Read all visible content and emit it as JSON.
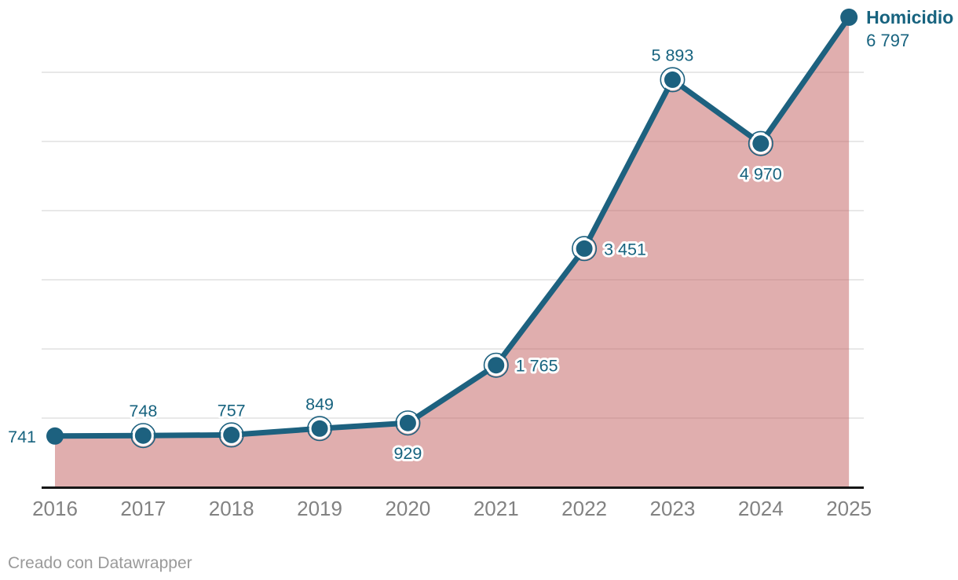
{
  "footer": {
    "credit": "Creado con Datawrapper"
  },
  "chart_data": {
    "type": "area",
    "title": "",
    "series_label": "Homicidio",
    "x": [
      2016,
      2017,
      2018,
      2019,
      2020,
      2021,
      2022,
      2023,
      2024,
      2025
    ],
    "x_tick_labels": [
      "2016",
      "2017",
      "2018",
      "2019",
      "2020",
      "2021",
      "2022",
      "2023",
      "2024",
      "2025"
    ],
    "series": [
      {
        "name": "Homicidio",
        "values": [
          741,
          748,
          757,
          849,
          929,
          1765,
          3451,
          5893,
          4970,
          6797
        ]
      }
    ],
    "value_labels": [
      "741",
      "748",
      "757",
      "849",
      "929",
      "1 765",
      "3 451",
      "5 893",
      "4 970",
      "6 797"
    ],
    "label_positions": [
      "left",
      "above",
      "above",
      "above",
      "below",
      "right",
      "right",
      "above",
      "below",
      "legend"
    ],
    "legend_value_label": "6 797",
    "ylim": [
      0,
      6900
    ],
    "gridline_values": [
      1000,
      2000,
      3000,
      4000,
      5000,
      6000
    ],
    "grid": "horizontal-only, no y-axis tick labels",
    "legend_position": "end-of-line-right",
    "colors": {
      "line": "#1d617f",
      "area": "#c25d5d",
      "area_opacity": "0.5",
      "value_label_text": "#17637f",
      "label_halo": "#ffffff",
      "axis_text": "#828282",
      "gridline": "#e8e8e8",
      "baseline": "#161616",
      "footer_text": "#9a9a9a",
      "background": "#ffffff"
    }
  }
}
